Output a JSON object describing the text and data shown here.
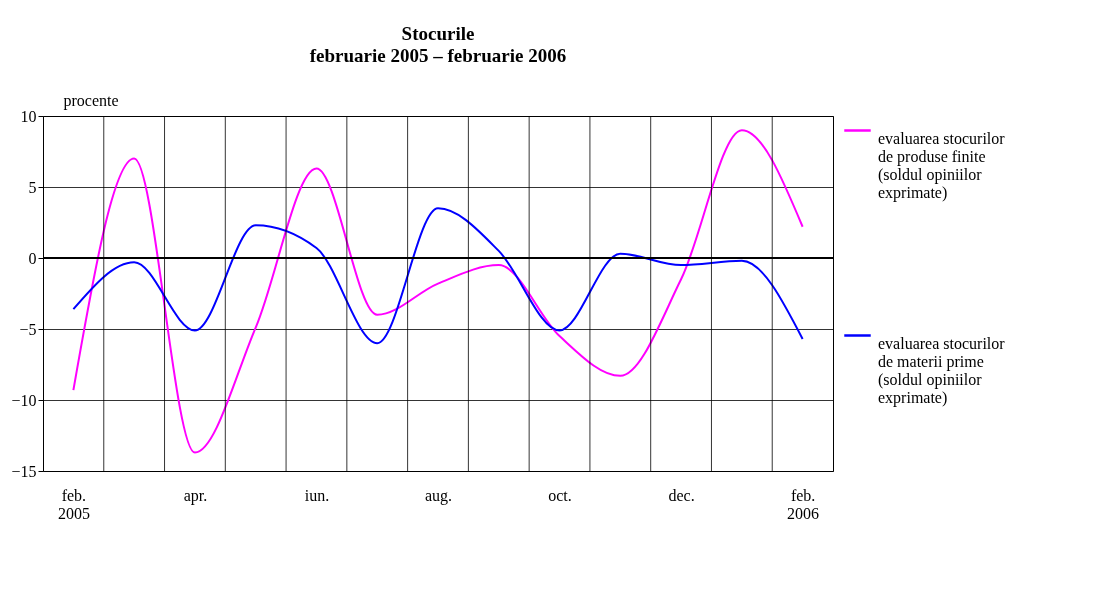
{
  "chart_data": {
    "type": "line",
    "title": "Stocurile",
    "subtitle": "februarie 2005 – februarie 2006",
    "ylabel": "procente",
    "categories": [
      "feb. 2005",
      null,
      "apr.",
      null,
      "iun.",
      null,
      "aug.",
      null,
      "oct.",
      null,
      "dec.",
      null,
      "feb. 2006"
    ],
    "series": [
      {
        "name": "evaluarea stocurilor de produse finite (soldul opiniilor exprimate)",
        "color": "#ff00ff",
        "values": [
          -9.3,
          7.0,
          -13.7,
          -4.9,
          6.3,
          -4.0,
          -1.8,
          -0.5,
          -5.5,
          -8.3,
          -1.5,
          9.0,
          2.2
        ]
      },
      {
        "name": "evaluarea stocurilor de materii prime (soldul opiniilor exprimate)",
        "color": "#0000ff",
        "values": [
          -3.6,
          -0.3,
          -5.1,
          2.3,
          0.7,
          -6.0,
          3.5,
          0.5,
          -5.1,
          0.3,
          -0.5,
          -0.2,
          -5.7
        ]
      }
    ],
    "ylim": [
      -15,
      10
    ],
    "yticks": [
      -15,
      -10,
      -5,
      0,
      5,
      10
    ],
    "grid": true,
    "legend": "right",
    "marker": "none",
    "line_style": "solid",
    "ref_lines": [
      {
        "axis": "y",
        "value": 0,
        "label": null
      }
    ]
  }
}
